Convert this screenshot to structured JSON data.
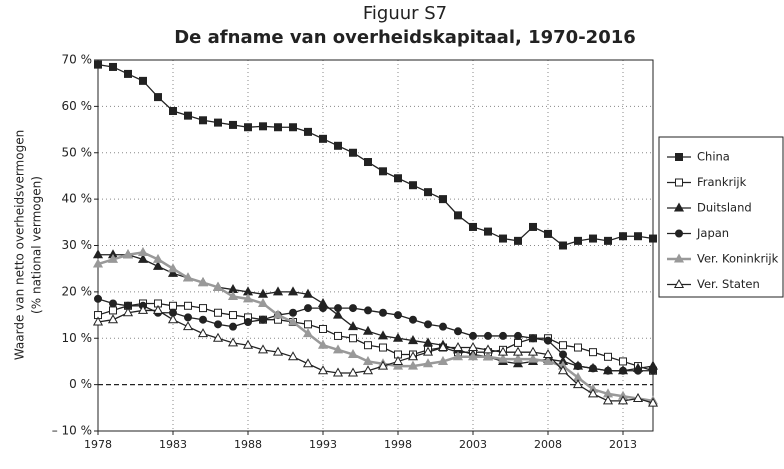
{
  "chart_data": {
    "type": "line",
    "title": "Figuur S7",
    "subtitle": "De afname van overheidskapitaal, 1970-2016",
    "ylabel": [
      "Waarde van netto overheidsvermogen",
      "(% national vermogen)"
    ],
    "x": [
      1978,
      1979,
      1980,
      1981,
      1982,
      1983,
      1984,
      1985,
      1986,
      1987,
      1988,
      1989,
      1990,
      1991,
      1992,
      1993,
      1994,
      1995,
      1996,
      1997,
      1998,
      1999,
      2000,
      2001,
      2002,
      2003,
      2004,
      2005,
      2006,
      2007,
      2008,
      2009,
      2010,
      2011,
      2012,
      2013,
      2014,
      2015
    ],
    "xlim": [
      1978,
      2015
    ],
    "xticks": [
      1978,
      1983,
      1988,
      1993,
      1998,
      2003,
      2008,
      2013
    ],
    "ylim": [
      -10,
      70
    ],
    "yticks": [
      {
        "value": -10,
        "label": "– 10 %"
      },
      {
        "value": 0,
        "label": "0 %"
      },
      {
        "value": 10,
        "label": "10 %"
      },
      {
        "value": 20,
        "label": "20 %"
      },
      {
        "value": 30,
        "label": "30 %"
      },
      {
        "value": 40,
        "label": "40 %"
      },
      {
        "value": 50,
        "label": "50 %"
      },
      {
        "value": 60,
        "label": "60 %"
      },
      {
        "value": 70,
        "label": "70 %"
      }
    ],
    "grid": true,
    "legend": "right",
    "series": [
      {
        "name": "China",
        "color": "#222222",
        "marker": "square",
        "filled": true,
        "values": [
          69,
          68.5,
          67,
          65.5,
          62,
          59,
          58,
          57,
          56.5,
          56,
          55.5,
          55.7,
          55.5,
          55.5,
          54.5,
          53,
          51.5,
          50,
          48,
          46,
          44.5,
          43,
          41.5,
          40,
          36.5,
          34,
          33,
          31.5,
          31,
          34,
          32.5,
          30,
          31,
          31.5,
          31,
          32,
          32,
          31.5
        ]
      },
      {
        "name": "Frankrijk",
        "color": "#222222",
        "marker": "square",
        "filled": false,
        "values": [
          15,
          16,
          17,
          17.5,
          17.5,
          17,
          17,
          16.5,
          15.5,
          15,
          14.5,
          14,
          14,
          13.5,
          13,
          12,
          10.5,
          10,
          8.5,
          8,
          6.5,
          6.5,
          7.5,
          8,
          7,
          7,
          7,
          7.5,
          9,
          10,
          10,
          8.5,
          8,
          7,
          6,
          5,
          4,
          3
        ]
      },
      {
        "name": "Duitsland",
        "color": "#222222",
        "marker": "triangle",
        "filled": true,
        "values": [
          28,
          28,
          28,
          27,
          25.5,
          24,
          23,
          22,
          21,
          20.5,
          20,
          19.5,
          20,
          20,
          19.5,
          17.5,
          15,
          12.5,
          11.5,
          10.5,
          10,
          9.5,
          9,
          8.5,
          7.5,
          6.5,
          6,
          5,
          4.5,
          5,
          5.5,
          5,
          4,
          3.5,
          3,
          3,
          3.5,
          4
        ]
      },
      {
        "name": "Japan",
        "color": "#222222",
        "marker": "circle",
        "filled": true,
        "values": [
          18.5,
          17.5,
          17,
          17,
          15.5,
          15.5,
          14.5,
          14,
          13,
          12.5,
          13.5,
          14,
          15,
          15.5,
          16.5,
          16.5,
          16.5,
          16.5,
          16,
          15.5,
          15,
          14,
          13,
          12.5,
          11.5,
          10.5,
          10.5,
          10.5,
          10.5,
          10,
          9.5,
          6.5,
          4,
          3.5,
          3,
          3,
          3,
          3
        ]
      },
      {
        "name": "Ver. Koninkrijk",
        "color": "#999999",
        "marker": "triangle",
        "filled": true,
        "values": [
          26,
          27,
          28,
          28.5,
          27,
          25,
          23,
          22,
          21,
          19,
          18.5,
          17.5,
          15,
          13.5,
          11,
          8.5,
          7.5,
          6.5,
          5,
          4.5,
          4,
          4,
          4.5,
          5,
          6,
          6,
          6,
          5.5,
          5.5,
          5.5,
          5,
          4,
          1.5,
          -1,
          -2,
          -2.5,
          -3,
          -3.5
        ]
      },
      {
        "name": "Ver. Staten",
        "color": "#222222",
        "marker": "triangle",
        "filled": false,
        "values": [
          13.5,
          14,
          15.5,
          16,
          16,
          14,
          12.5,
          11,
          10,
          9,
          8.5,
          7.5,
          7,
          6,
          4.5,
          3,
          2.5,
          2.5,
          3,
          4,
          5,
          6,
          7,
          8,
          8,
          8,
          7.5,
          7,
          7,
          7,
          6.5,
          3,
          0,
          -2,
          -3.5,
          -3.5,
          -3,
          -4
        ]
      }
    ]
  }
}
